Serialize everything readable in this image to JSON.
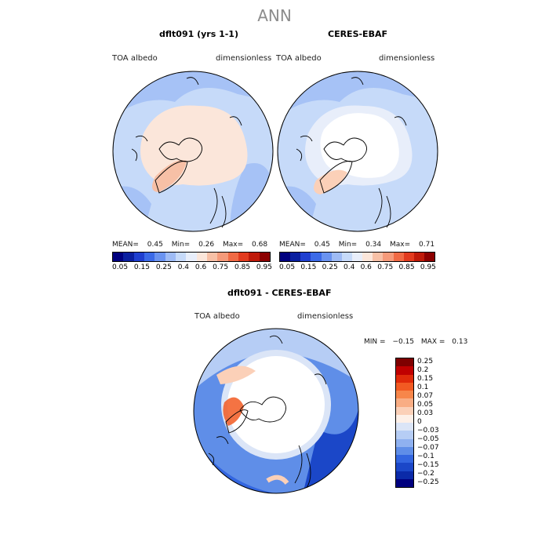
{
  "figure": {
    "title": "ANN"
  },
  "panel1": {
    "title": "dflt091 (yrs 1-1)",
    "left_label": "TOA albedo",
    "right_label": "dimensionless",
    "stats": {
      "mean_label": "MEAN=",
      "mean": "0.45",
      "min_label": "Min=",
      "min": "0.26",
      "max_label": "Max=",
      "max": "0.68"
    }
  },
  "panel2": {
    "title": "CERES-EBAF",
    "left_label": "TOA albedo",
    "right_label": "dimensionless",
    "stats": {
      "mean_label": "MEAN=",
      "mean": "0.45",
      "min_label": "Min=",
      "min": "0.34",
      "max_label": "Max=",
      "max": "0.71"
    }
  },
  "colorbar_top": {
    "colors": [
      "#00007f",
      "#0a1fa0",
      "#1f3fd0",
      "#3b6ae8",
      "#6a93f0",
      "#9ebbf5",
      "#c6daf9",
      "#e8eefa",
      "#fbe6da",
      "#f7c0a6",
      "#f59a7a",
      "#f06a45",
      "#e23b1f",
      "#bf1a0a",
      "#8c0000"
    ],
    "labels": [
      "0.05",
      "0.15",
      "0.25",
      "0.4",
      "0.6",
      "0.75",
      "0.85",
      "0.95"
    ]
  },
  "panel3": {
    "title": "dflt091 - CERES-EBAF",
    "left_label": "TOA albedo",
    "right_label": "dimensionless",
    "minmax": {
      "min_label": "MIN =",
      "min": "−0.15",
      "max_label": "MAX =",
      "max": "0.13"
    }
  },
  "colorbar_diff": {
    "colors": [
      "#7f0000",
      "#c00000",
      "#e02a0a",
      "#f25a22",
      "#f7864a",
      "#f9ad84",
      "#fbd0b8",
      "#fdf0e8",
      "#dbe5f7",
      "#b6cdf5",
      "#8fb1f0",
      "#5f8ee8",
      "#3366e0",
      "#1b47c8",
      "#0b2aa8",
      "#00007f"
    ],
    "labels": [
      "0.25",
      "0.2",
      "0.15",
      "0.1",
      "0.07",
      "0.05",
      "0.03",
      "0",
      "−0.03",
      "−0.05",
      "−0.07",
      "−0.1",
      "−0.15",
      "−0.2",
      "−0.25"
    ]
  }
}
